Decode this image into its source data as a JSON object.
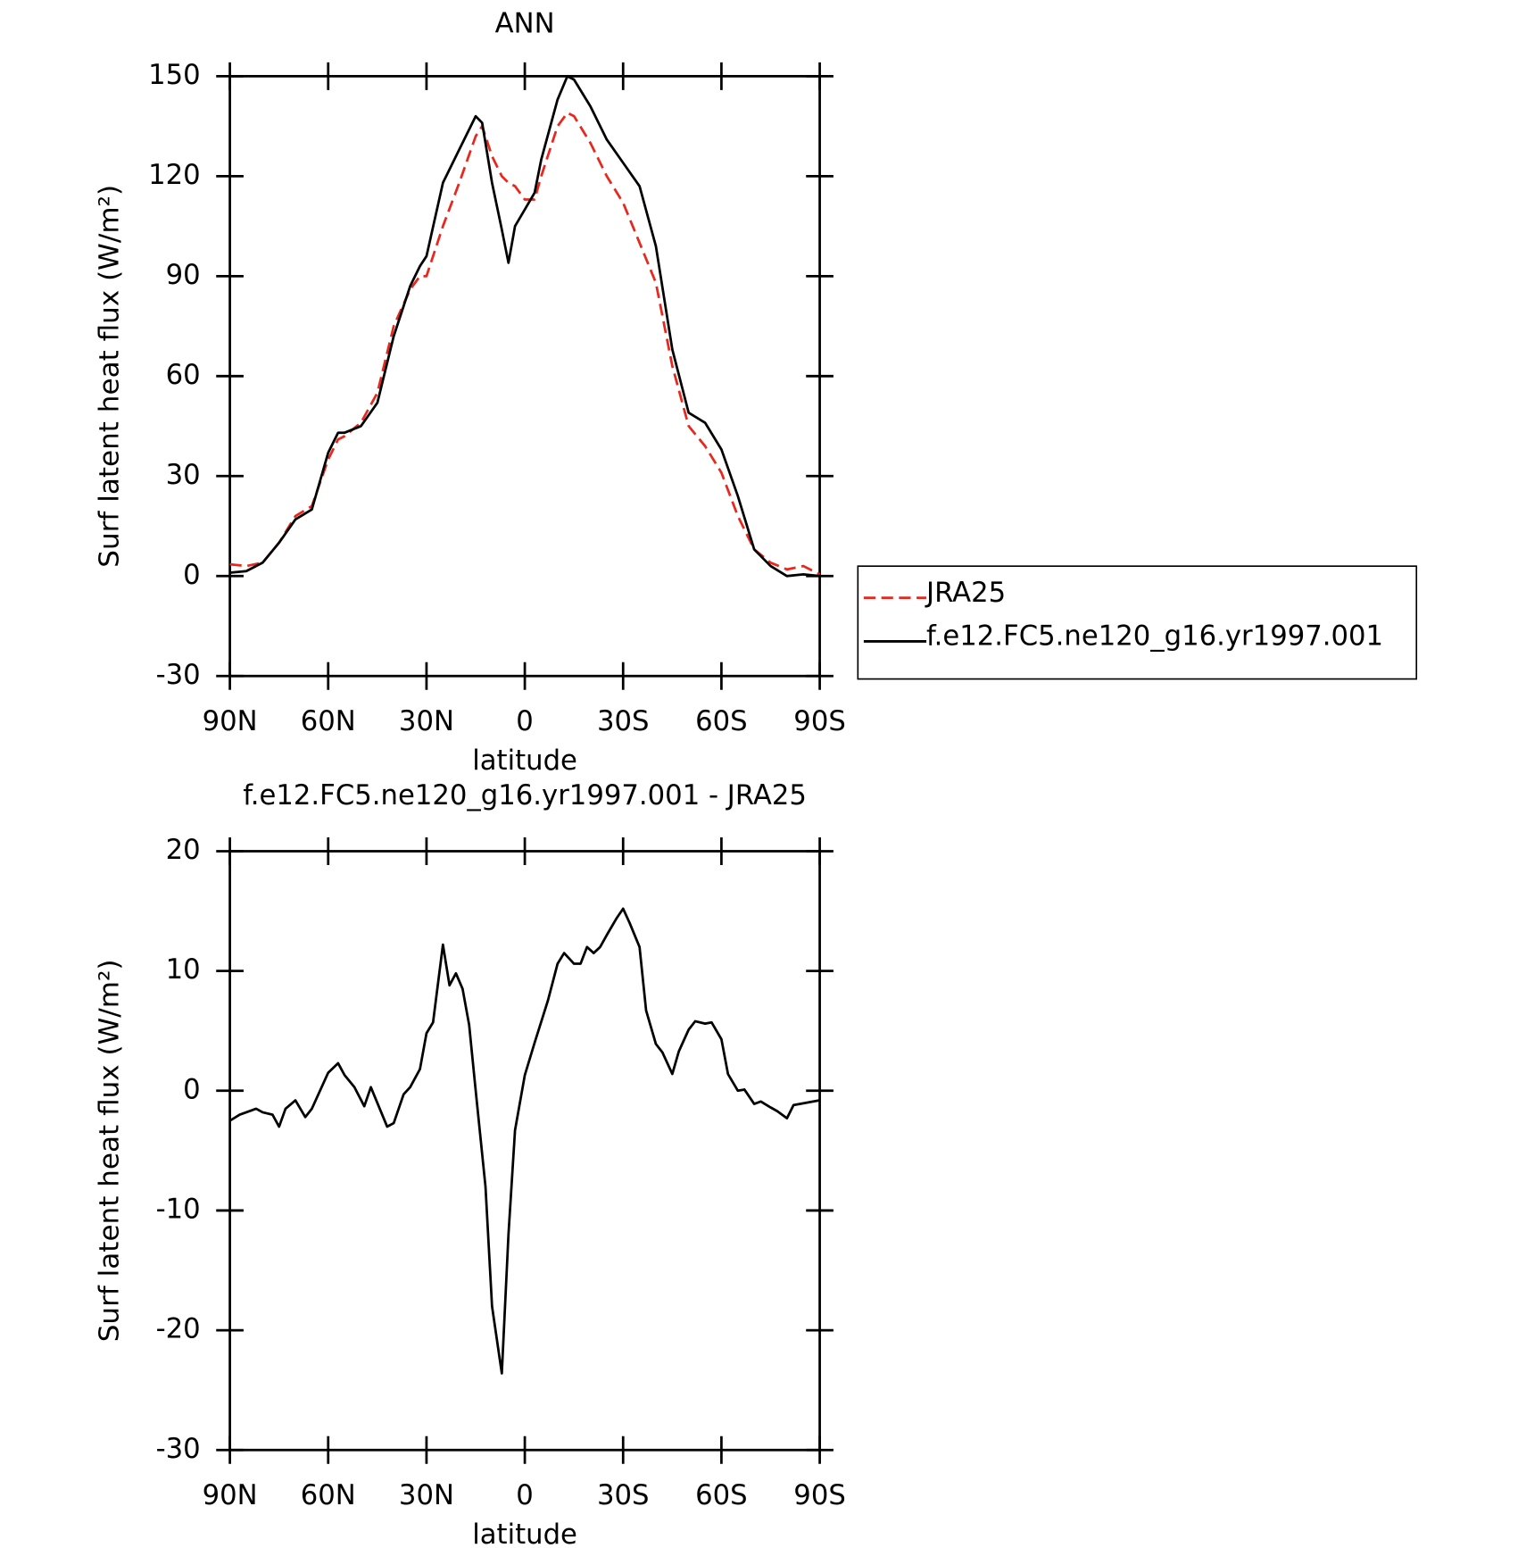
{
  "chart_data": [
    {
      "type": "line",
      "title": "ANN",
      "xlabel": "latitude",
      "ylabel": "Surf latent heat flux (W/m²)",
      "x": [
        90,
        85,
        80,
        75,
        70,
        65,
        60,
        57,
        55,
        50,
        45,
        40,
        35,
        32,
        30,
        25,
        20,
        15,
        13,
        10,
        7,
        5,
        3,
        0,
        -3,
        -5,
        -10,
        -13,
        -15,
        -20,
        -25,
        -30,
        -35,
        -40,
        -45,
        -50,
        -55,
        -60,
        -65,
        -70,
        -75,
        -80,
        -85,
        -90
      ],
      "series": [
        {
          "name": "JRA25",
          "color": "#e8281e",
          "dashed": true,
          "values": [
            3.5,
            3,
            4,
            10,
            18,
            21,
            35,
            41,
            42,
            46,
            55,
            75,
            86,
            90,
            90,
            105,
            118,
            132,
            135,
            126,
            120,
            118,
            117,
            113,
            113,
            120,
            135,
            139,
            138,
            130,
            120,
            112,
            100,
            88,
            63,
            45,
            39,
            31,
            18,
            8,
            4,
            2,
            3,
            0.5
          ]
        },
        {
          "name": "f.e12.FC5.ne120_g16.yr1997.001",
          "color": "#000000",
          "dashed": false,
          "values": [
            1,
            1.5,
            4,
            10,
            17,
            20,
            37,
            43,
            43,
            45,
            52,
            72,
            87,
            93,
            96,
            118,
            128,
            138,
            136,
            118,
            104,
            94,
            105,
            110,
            115,
            125,
            143,
            150,
            149,
            141,
            131,
            124,
            117,
            99,
            68,
            49,
            46,
            38,
            24,
            8,
            3,
            0,
            0.5,
            0
          ]
        }
      ],
      "xlim": [
        90,
        -90
      ],
      "xticks": [
        {
          "value": 90,
          "label": "90N"
        },
        {
          "value": 60,
          "label": "60N"
        },
        {
          "value": 30,
          "label": "30N"
        },
        0,
        {
          "value": -30,
          "label": "30S"
        },
        {
          "value": -60,
          "label": "60S"
        },
        {
          "value": -90,
          "label": "90S"
        }
      ],
      "ylim": [
        -30,
        150
      ],
      "yticks": [
        -30,
        0,
        30,
        60,
        90,
        120,
        150
      ],
      "legend": "right"
    },
    {
      "type": "line",
      "title": "f.e12.FC5.ne120_g16.yr1997.001 - JRA25",
      "xlabel": "latitude",
      "ylabel": "Surf latent heat flux (W/m²)",
      "x": [
        90,
        87,
        85,
        82,
        80,
        77,
        75,
        73,
        70,
        67,
        65,
        60,
        57,
        55,
        52,
        49,
        47,
        42,
        40,
        37,
        35,
        32,
        30,
        28,
        25,
        23,
        21,
        19,
        17,
        15,
        12,
        10,
        7,
        5,
        3,
        0,
        -3,
        -7,
        -10,
        -12,
        -15,
        -17,
        -19,
        -21,
        -23,
        -25,
        -28,
        -30,
        -32,
        -35,
        -37,
        -40,
        -42,
        -45,
        -47,
        -50,
        -52,
        -55,
        -57,
        -60,
        -62,
        -65,
        -67,
        -70,
        -72,
        -75,
        -77,
        -80,
        -82,
        -90
      ],
      "values": [
        -2.5,
        -2,
        -1.8,
        -1.5,
        -1.8,
        -2,
        -3,
        -1.5,
        -0.8,
        -2.2,
        -1.5,
        1.5,
        2.3,
        1.3,
        0.3,
        -1.3,
        0.3,
        -3,
        -2.7,
        -0.3,
        0.3,
        1.8,
        4.8,
        5.7,
        12.2,
        8.8,
        9.8,
        8.5,
        5.5,
        0,
        -8,
        -18,
        -23.6,
        -12,
        -3.3,
        1.3,
        4,
        7.5,
        10.6,
        11.5,
        10.6,
        10.6,
        12,
        11.5,
        12,
        13,
        14.4,
        15.2,
        14,
        12,
        6.7,
        3.9,
        3.2,
        1.4,
        3.3,
        5.1,
        5.8,
        5.6,
        5.7,
        4.3,
        1.4,
        0,
        0.1,
        -1.1,
        -0.9,
        -1.4,
        -1.7,
        -2.3,
        -1.2,
        -0.8
      ],
      "color": "#000000",
      "xlim": [
        90,
        -90
      ],
      "xticks": [
        {
          "value": 90,
          "label": "90N"
        },
        {
          "value": 60,
          "label": "60N"
        },
        {
          "value": 30,
          "label": "30N"
        },
        0,
        {
          "value": -30,
          "label": "30S"
        },
        {
          "value": -60,
          "label": "60S"
        },
        {
          "value": -90,
          "label": "90S"
        }
      ],
      "ylim": [
        -30,
        20
      ],
      "yticks": [
        -30,
        -20,
        -10,
        0,
        10,
        20
      ]
    }
  ]
}
